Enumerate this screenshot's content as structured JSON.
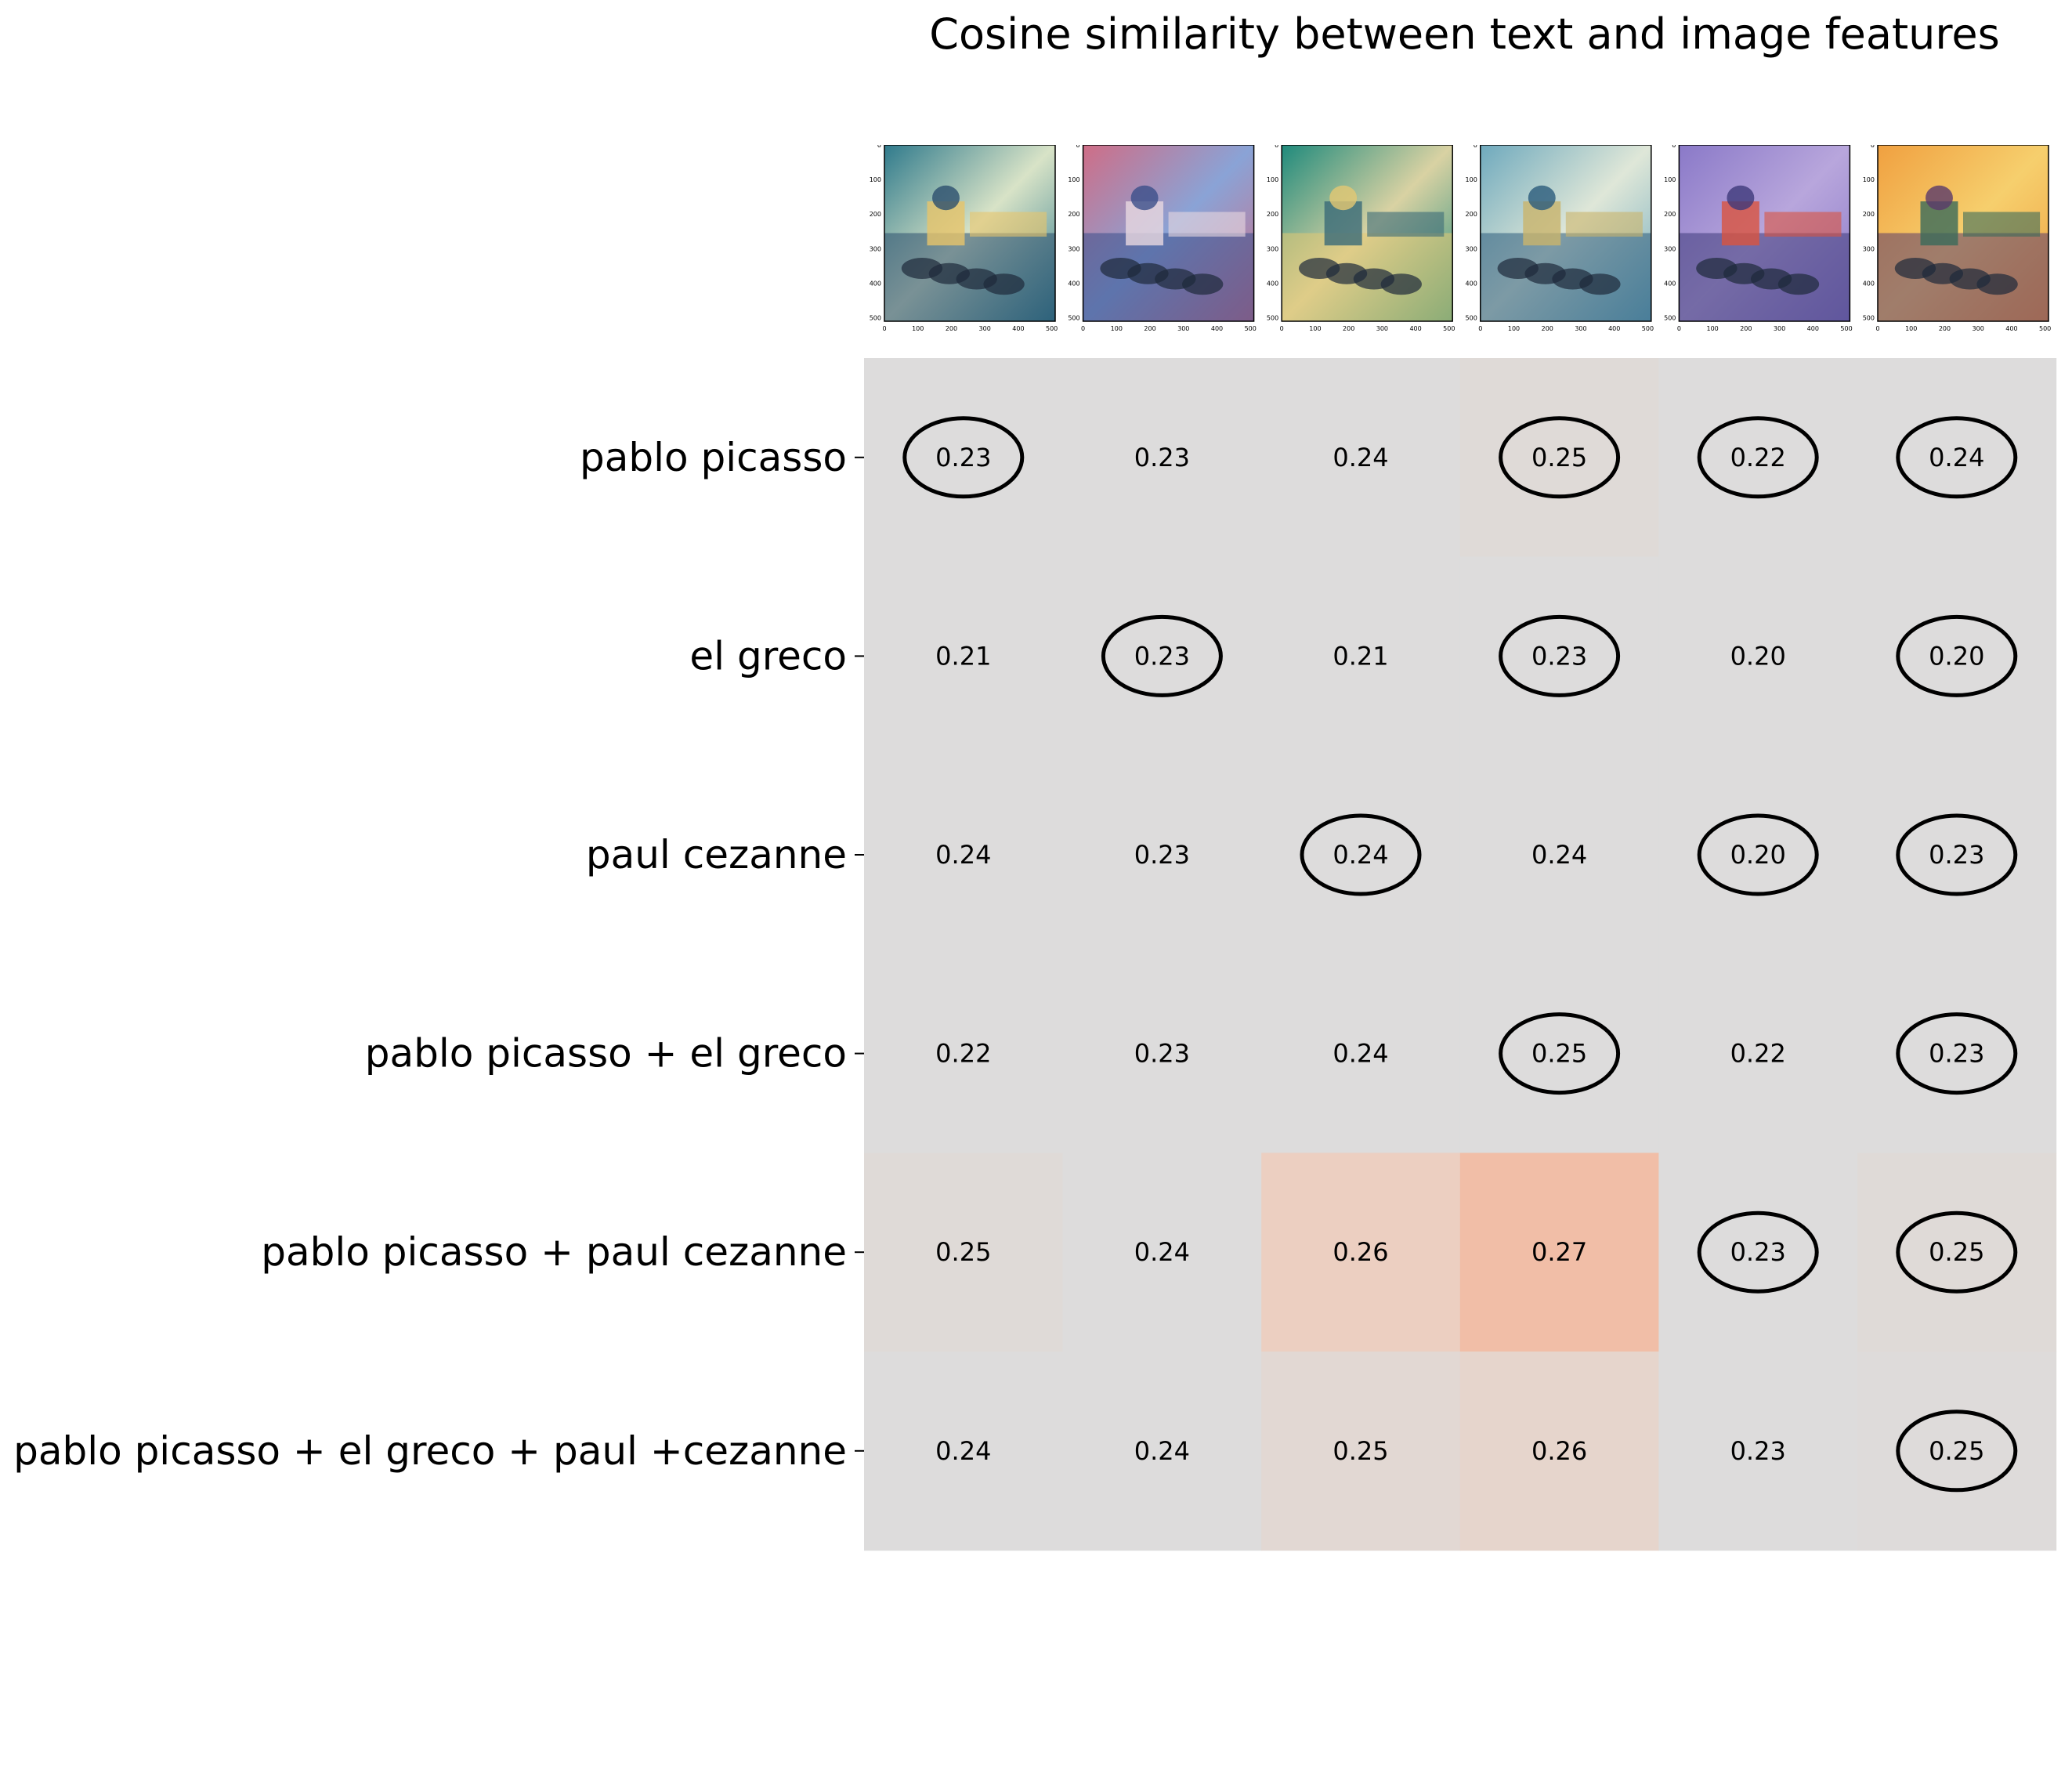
{
  "title": "Cosine similarity between text and image features",
  "thumbnail_axis_ticks": [
    "0",
    "100",
    "200",
    "300",
    "400",
    "500"
  ],
  "thumbnails": [
    {
      "name": "image-1",
      "palette": [
        "#2f7a8c",
        "#d8e3c7",
        "#e7c46a",
        "#2c4f6e"
      ]
    },
    {
      "name": "image-2",
      "palette": [
        "#cf6d86",
        "#8aa3d6",
        "#e9d8e0",
        "#3b4f8a"
      ]
    },
    {
      "name": "image-3",
      "palette": [
        "#1f8a7c",
        "#d9d2a3",
        "#3a6a78",
        "#e3c873"
      ]
    },
    {
      "name": "image-4",
      "palette": [
        "#6ea9bd",
        "#dfe7d8",
        "#c9b46b",
        "#2b5b7c"
      ]
    },
    {
      "name": "image-5",
      "palette": [
        "#8a79c8",
        "#b8a6dc",
        "#d9543f",
        "#3e3a7a"
      ]
    },
    {
      "name": "image-6",
      "palette": [
        "#f0a040",
        "#f6cf6d",
        "#3a6a5a",
        "#5a3a6a"
      ]
    }
  ],
  "chart_data": {
    "type": "heatmap",
    "title": "Cosine similarity between text and image features",
    "rows": [
      "pablo picasso",
      "el greco",
      "paul cezanne",
      "pablo picasso + el greco",
      "pablo picasso + paul cezanne",
      "pablo picasso + el greco + paul +cezanne"
    ],
    "values": [
      [
        0.229,
        0.226,
        0.238,
        0.252,
        0.219,
        0.239
      ],
      [
        0.208,
        0.23,
        0.21,
        0.229,
        0.203,
        0.204
      ],
      [
        0.24,
        0.232,
        0.236,
        0.236,
        0.197,
        0.232
      ],
      [
        0.221,
        0.234,
        0.237,
        0.25,
        0.22,
        0.233
      ],
      [
        0.252,
        0.244,
        0.262,
        0.27,
        0.234,
        0.252
      ],
      [
        0.242,
        0.244,
        0.254,
        0.257,
        0.231,
        0.251
      ]
    ],
    "labels": [
      [
        "0.23",
        "0.23",
        "0.24",
        "0.25",
        "0.22",
        "0.24"
      ],
      [
        "0.21",
        "0.23",
        "0.21",
        "0.23",
        "0.20",
        "0.20"
      ],
      [
        "0.24",
        "0.23",
        "0.24",
        "0.24",
        "0.20",
        "0.23"
      ],
      [
        "0.22",
        "0.23",
        "0.24",
        "0.25",
        "0.22",
        "0.23"
      ],
      [
        "0.25",
        "0.24",
        "0.26",
        "0.27",
        "0.23",
        "0.25"
      ],
      [
        "0.24",
        "0.24",
        "0.25",
        "0.26",
        "0.23",
        "0.25"
      ]
    ],
    "circled": [
      [
        true,
        false,
        false,
        true,
        true,
        true
      ],
      [
        false,
        true,
        false,
        true,
        false,
        true
      ],
      [
        false,
        false,
        true,
        false,
        true,
        true
      ],
      [
        false,
        false,
        false,
        true,
        false,
        true
      ],
      [
        false,
        false,
        false,
        false,
        true,
        true
      ],
      [
        false,
        false,
        false,
        false,
        false,
        true
      ]
    ],
    "colormap": "coolwarm",
    "vmin": 0.18,
    "vmax": 0.32,
    "grid": false
  }
}
